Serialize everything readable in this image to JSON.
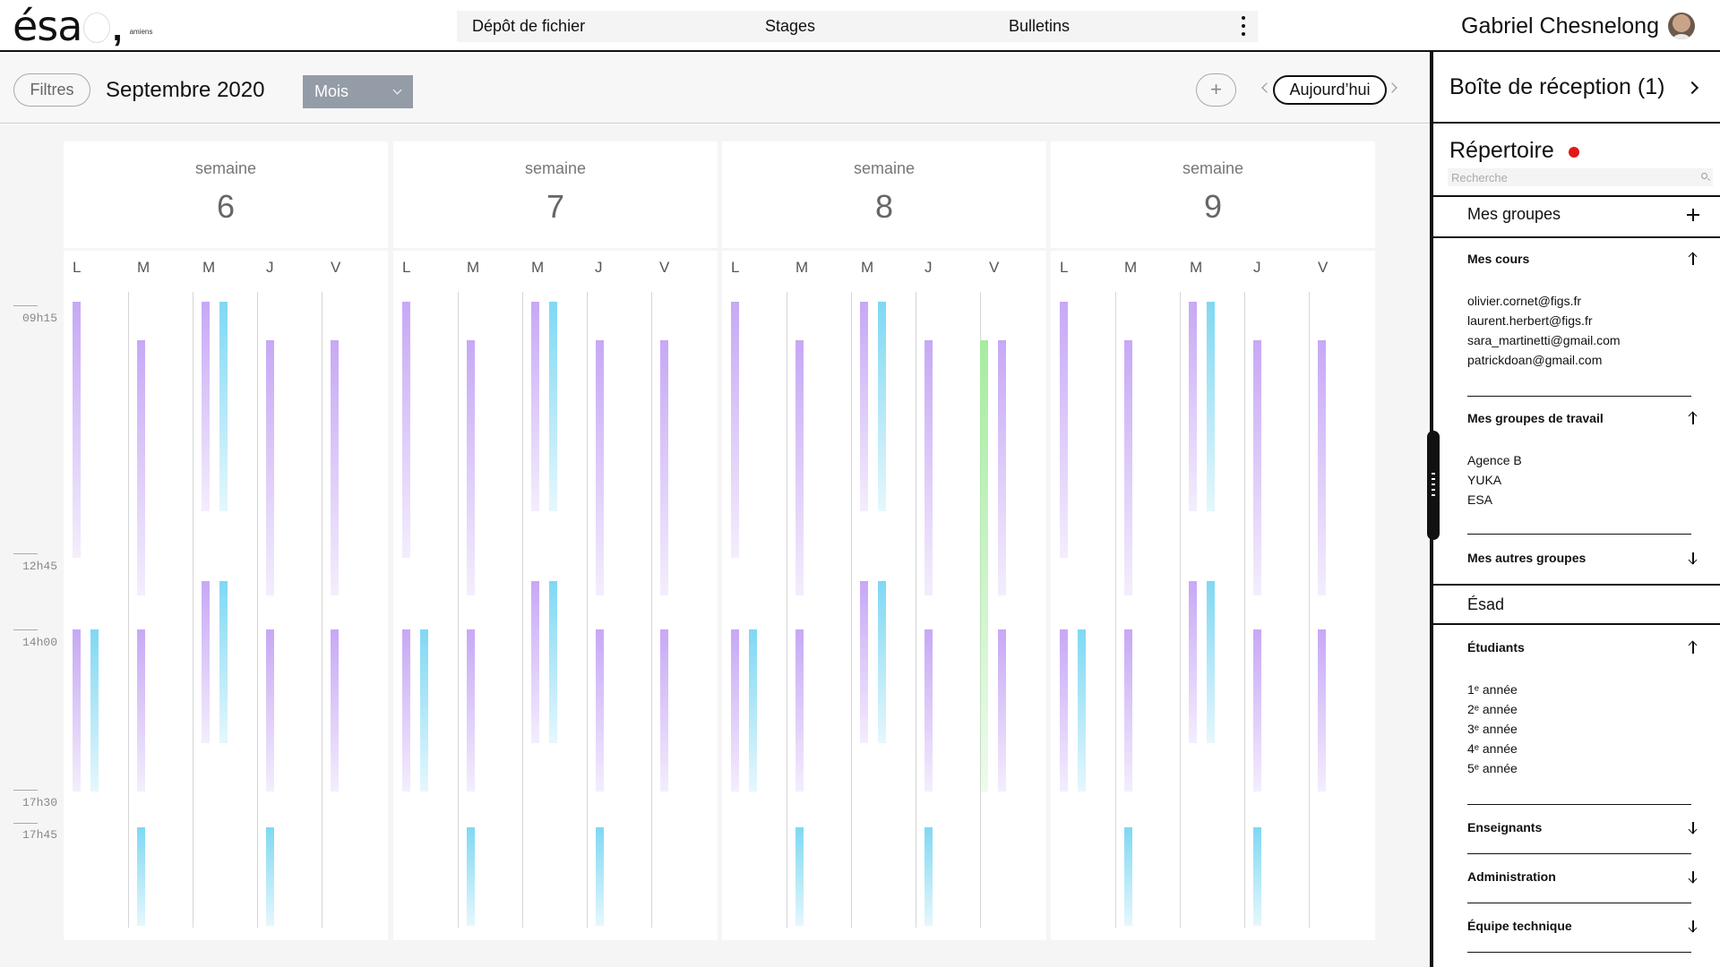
{
  "app": {
    "logo_text": "ésa",
    "logo_comma": ",",
    "logo_sub": "amiens"
  },
  "nav": {
    "items": [
      "Dépôt de fichier",
      "Stages",
      "Bulletins"
    ],
    "more_icon": "more-vertical-icon"
  },
  "user": {
    "name": "Gabriel Chesnelong"
  },
  "toolbar": {
    "filters_label": "Filtres",
    "month_title": "Septembre 2020",
    "view_selected": "Mois",
    "add_label": "+",
    "today_label": "Aujourd’hui"
  },
  "calendar": {
    "time_labels": [
      "09h15",
      "12h45",
      "14h00",
      "17h30",
      "17h45"
    ],
    "week_word": "semaine",
    "weeks": [
      {
        "number": "6",
        "days": [
          "L",
          "M",
          "M",
          "J",
          "V"
        ]
      },
      {
        "number": "7",
        "days": [
          "L",
          "M",
          "M",
          "J",
          "V"
        ]
      },
      {
        "number": "8",
        "days": [
          "L",
          "M",
          "M",
          "J",
          "V"
        ]
      },
      {
        "number": "9",
        "days": [
          "L",
          "M",
          "M",
          "J",
          "V"
        ]
      }
    ],
    "event_colors": {
      "purple": "#c7a8f5",
      "cyan": "#7fd8f3",
      "green": "#a6eca0"
    }
  },
  "panel": {
    "inbox_label": "Boîte de réception (1)",
    "directory_title": "Répertoire",
    "search_placeholder": "Recherche",
    "my_groups_label": "Mes groupes",
    "my_courses_label": "Mes cours",
    "my_courses": [
      "olivier.cornet@figs.fr",
      "laurent.herbert@figs.fr",
      "sara_martinetti@gmail.com",
      "patrickdoan@gmail.com"
    ],
    "work_groups_label": "Mes groupes de travail",
    "work_groups": [
      "Agence B",
      "YUKA",
      "ESA"
    ],
    "other_groups_label": "Mes autres groupes",
    "esad_label": "Ésad",
    "students_label": "Étudiants",
    "students": [
      "1ᵉ année",
      "2ᵉ année",
      "3ᵉ année",
      "4ᵉ année",
      "5ᵉ année"
    ],
    "teachers_label": "Enseignants",
    "administration_label": "Administration",
    "tech_team_label": "Équipe technique"
  }
}
